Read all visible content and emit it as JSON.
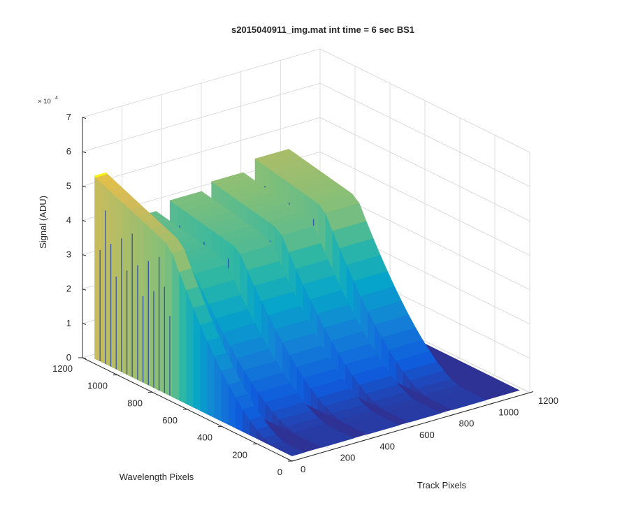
{
  "chart_data": {
    "type": "surface",
    "title": "s2015040911_img.mat int time = 6 sec   BS1",
    "xlabel": "Track Pixels",
    "ylabel": "Wavelength Pixels",
    "zlabel": "Signal (ADU)",
    "z_multiplier_label": "× 10",
    "z_multiplier_exponent": "4",
    "xlim": [
      0,
      1200
    ],
    "ylim": [
      0,
      1200
    ],
    "zlim": [
      0,
      70000
    ],
    "xticks": [
      "0",
      "200",
      "400",
      "600",
      "800",
      "1000",
      "1200"
    ],
    "yticks": [
      "0",
      "200",
      "400",
      "600",
      "800",
      "1000",
      "1200"
    ],
    "zticks": [
      "0",
      "1",
      "2",
      "3",
      "4",
      "5",
      "6",
      "7"
    ],
    "grid": true,
    "colormap": "parula",
    "colormap_colors": [
      "#352a87",
      "#0f5cdd",
      "#1481d6",
      "#06a4ca",
      "#2eb7a4",
      "#87bf77",
      "#d1bb59",
      "#fec832",
      "#f9fb0e"
    ],
    "series": [
      {
        "x_start": 0,
        "x_end": 60,
        "peak": 56000,
        "base": 45000,
        "falloff_start": 700,
        "falloff_end": 100
      },
      {
        "x_start": 150,
        "x_end": 310,
        "peak": 40000,
        "base": 35000,
        "falloff_start": 740,
        "falloff_end": 140
      },
      {
        "x_start": 380,
        "x_end": 540,
        "peak": 42000,
        "base": 37000,
        "falloff_start": 740,
        "falloff_end": 140
      },
      {
        "x_start": 590,
        "x_end": 750,
        "peak": 44000,
        "base": 39000,
        "falloff_start": 740,
        "falloff_end": 140
      },
      {
        "x_start": 810,
        "x_end": 980,
        "peak": 47000,
        "base": 42000,
        "falloff_start": 740,
        "falloff_end": 140
      }
    ],
    "floor_value": 1500
  }
}
